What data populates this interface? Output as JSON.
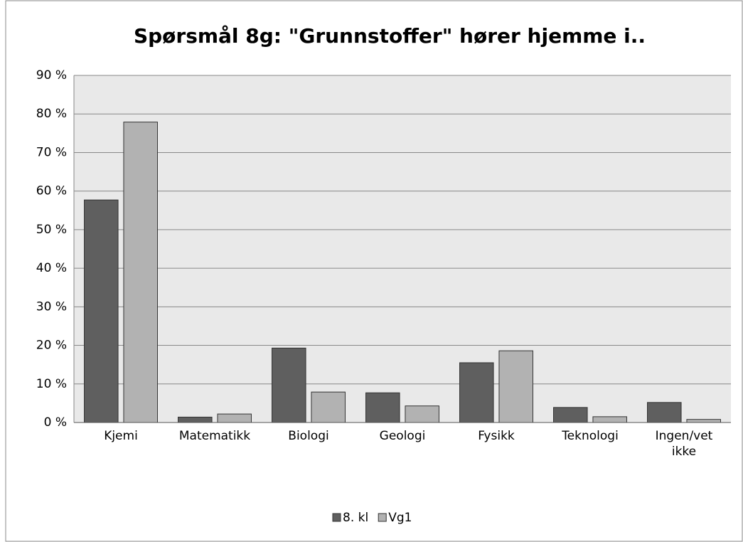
{
  "chart_data": {
    "type": "bar",
    "title": "Spørsmål 8g: \"Grunnstoffer\" hører hjemme i..",
    "categories": [
      "Kjemi",
      "Matematikk",
      "Biologi",
      "Geologi",
      "Fysikk",
      "Teknologi",
      "Ingen/vet ikke"
    ],
    "series": [
      {
        "name": "8. kl",
        "color": "#5f5f5f",
        "values": [
          57.7,
          1.4,
          19.3,
          7.7,
          15.5,
          3.9,
          5.2
        ]
      },
      {
        "name": "Vg1",
        "color": "#b2b2b2",
        "values": [
          77.9,
          2.2,
          7.9,
          4.3,
          18.6,
          1.5,
          0.8
        ]
      }
    ],
    "ylim": [
      0,
      90
    ],
    "yticks": [
      {
        "value": 0,
        "label": "0 %"
      },
      {
        "value": 10,
        "label": "10 %"
      },
      {
        "value": 20,
        "label": "20 %"
      },
      {
        "value": 30,
        "label": "30 %"
      },
      {
        "value": 40,
        "label": "40 %"
      },
      {
        "value": 50,
        "label": "50 %"
      },
      {
        "value": 60,
        "label": "60 %"
      },
      {
        "value": 70,
        "label": "70 %"
      },
      {
        "value": 80,
        "label": "80 %"
      },
      {
        "value": 90,
        "label": "90 %"
      }
    ],
    "grid": true,
    "legend": "bottom"
  }
}
